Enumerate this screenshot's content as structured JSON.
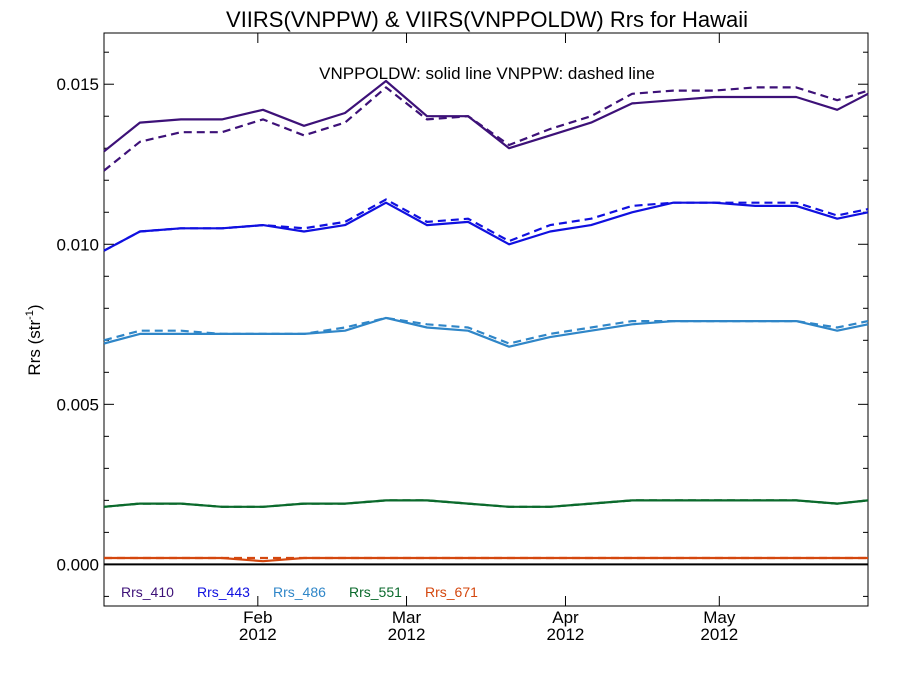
{
  "chart_data": {
    "type": "line",
    "title": "VIIRS(VNPPW) & VIIRS(VNPPOLDW)  Rrs for Hawaii",
    "subtitle": "VNPPOLDW: solid line   VNPPW: dashed line",
    "ylabel_main": "Rrs (str",
    "ylabel_sup": "-1",
    "ylabel_tail": ")",
    "ylim": [
      -0.0013,
      0.0166
    ],
    "xlim": [
      "2012-01-02",
      "2012-05-30"
    ],
    "yticks": [
      {
        "value": 0.0,
        "label": "0.000"
      },
      {
        "value": 0.005,
        "label": "0.005"
      },
      {
        "value": 0.01,
        "label": "0.010"
      },
      {
        "value": 0.015,
        "label": "0.015"
      }
    ],
    "xticks": [
      {
        "date": "2012-02-01",
        "month": "Feb",
        "year": "2012"
      },
      {
        "date": "2012-03-01",
        "month": "Mar",
        "year": "2012"
      },
      {
        "date": "2012-04-01",
        "month": "Apr",
        "year": "2012"
      },
      {
        "date": "2012-05-01",
        "month": "May",
        "year": "2012"
      }
    ],
    "grid": false,
    "zero_line": true,
    "legend_position": "bottom-left",
    "x": [
      "2012-01-02",
      "2012-01-09",
      "2012-01-17",
      "2012-01-25",
      "2012-02-02",
      "2012-02-10",
      "2012-02-18",
      "2012-02-26",
      "2012-03-05",
      "2012-03-13",
      "2012-03-21",
      "2012-03-29",
      "2012-04-06",
      "2012-04-14",
      "2012-04-22",
      "2012-04-30",
      "2012-05-08",
      "2012-05-16",
      "2012-05-24",
      "2012-05-30"
    ],
    "series": [
      {
        "name": "Rrs_410",
        "color": "#3d1178",
        "line": "solid",
        "values": [
          0.0129,
          0.0138,
          0.0139,
          0.0139,
          0.0142,
          0.0137,
          0.0141,
          0.0151,
          0.014,
          0.014,
          0.013,
          0.0134,
          0.0138,
          0.0144,
          0.0145,
          0.0146,
          0.0146,
          0.0146,
          0.0142,
          0.0147
        ]
      },
      {
        "name": "Rrs_410",
        "color": "#3d1178",
        "line": "dashed",
        "values": [
          0.0123,
          0.0132,
          0.0135,
          0.0135,
          0.0139,
          0.0134,
          0.0138,
          0.0149,
          0.0139,
          0.014,
          0.0131,
          0.0136,
          0.014,
          0.0147,
          0.0148,
          0.0148,
          0.0149,
          0.0149,
          0.0145,
          0.0148
        ]
      },
      {
        "name": "Rrs_443",
        "color": "#1010e0",
        "line": "solid",
        "values": [
          0.0098,
          0.0104,
          0.0105,
          0.0105,
          0.0106,
          0.0104,
          0.0106,
          0.0113,
          0.0106,
          0.0107,
          0.01,
          0.0104,
          0.0106,
          0.011,
          0.0113,
          0.0113,
          0.0112,
          0.0112,
          0.0108,
          0.011
        ]
      },
      {
        "name": "Rrs_443",
        "color": "#1010e0",
        "line": "dashed",
        "values": [
          0.0098,
          0.0104,
          0.0105,
          0.0105,
          0.0106,
          0.0105,
          0.0107,
          0.0114,
          0.0107,
          0.0108,
          0.0101,
          0.0106,
          0.0108,
          0.0112,
          0.0113,
          0.0113,
          0.0113,
          0.0113,
          0.0109,
          0.0111
        ]
      },
      {
        "name": "Rrs_486",
        "color": "#2f86c8",
        "line": "solid",
        "values": [
          0.0069,
          0.0072,
          0.0072,
          0.0072,
          0.0072,
          0.0072,
          0.0073,
          0.0077,
          0.0074,
          0.0073,
          0.0068,
          0.0071,
          0.0073,
          0.0075,
          0.0076,
          0.0076,
          0.0076,
          0.0076,
          0.0073,
          0.0075
        ]
      },
      {
        "name": "Rrs_486",
        "color": "#2f86c8",
        "line": "dashed",
        "values": [
          0.007,
          0.0073,
          0.0073,
          0.0072,
          0.0072,
          0.0072,
          0.0074,
          0.0077,
          0.0075,
          0.0074,
          0.0069,
          0.0072,
          0.0074,
          0.0076,
          0.0076,
          0.0076,
          0.0076,
          0.0076,
          0.0074,
          0.0076
        ]
      },
      {
        "name": "Rrs_551",
        "color": "#0b6a2c",
        "line": "solid",
        "values": [
          0.0018,
          0.0019,
          0.0019,
          0.0018,
          0.0018,
          0.0019,
          0.0019,
          0.002,
          0.002,
          0.0019,
          0.0018,
          0.0018,
          0.0019,
          0.002,
          0.002,
          0.002,
          0.002,
          0.002,
          0.0019,
          0.002
        ]
      },
      {
        "name": "Rrs_551",
        "color": "#0b6a2c",
        "line": "dashed",
        "values": [
          0.0018,
          0.0019,
          0.0019,
          0.0018,
          0.0018,
          0.0019,
          0.0019,
          0.002,
          0.002,
          0.0019,
          0.0018,
          0.0018,
          0.0019,
          0.002,
          0.002,
          0.002,
          0.002,
          0.002,
          0.0019,
          0.002
        ]
      },
      {
        "name": "Rrs_671",
        "color": "#d4470e",
        "line": "solid",
        "values": [
          0.0002,
          0.0002,
          0.0002,
          0.0002,
          0.0001,
          0.0002,
          0.0002,
          0.0002,
          0.0002,
          0.0002,
          0.0002,
          0.0002,
          0.0002,
          0.0002,
          0.0002,
          0.0002,
          0.0002,
          0.0002,
          0.0002,
          0.0002
        ]
      },
      {
        "name": "Rrs_671",
        "color": "#d4470e",
        "line": "dashed",
        "values": [
          0.0002,
          0.0002,
          0.0002,
          0.0002,
          0.0002,
          0.0002,
          0.0002,
          0.0002,
          0.0002,
          0.0002,
          0.0002,
          0.0002,
          0.0002,
          0.0002,
          0.0002,
          0.0002,
          0.0002,
          0.0002,
          0.0002,
          0.0002
        ]
      }
    ],
    "legend": [
      {
        "label": "Rrs_410",
        "color": "#3d1178"
      },
      {
        "label": "Rrs_443",
        "color": "#1010e0"
      },
      {
        "label": "Rrs_486",
        "color": "#2f86c8"
      },
      {
        "label": "Rrs_551",
        "color": "#0b6a2c"
      },
      {
        "label": "Rrs_671",
        "color": "#d4470e"
      }
    ]
  }
}
